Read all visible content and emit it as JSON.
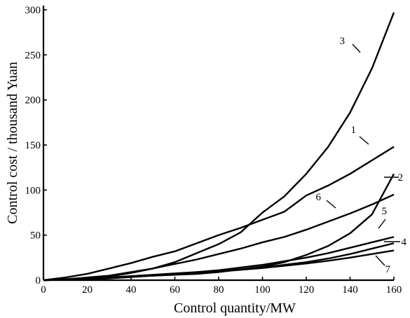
{
  "chart_data": {
    "type": "line",
    "xlabel": "Control quantity/MW",
    "ylabel": "Control cost / thousand Yuan",
    "xlim": [
      0,
      160
    ],
    "ylim": [
      0,
      300
    ],
    "xticks": [
      0,
      20,
      40,
      60,
      80,
      100,
      120,
      140,
      160
    ],
    "yticks": [
      0,
      50,
      100,
      150,
      200,
      250,
      300
    ],
    "ytick_labels": [
      "0",
      "50",
      "100",
      "150",
      "200",
      "250",
      "300"
    ],
    "grid": false,
    "x": [
      0,
      10,
      20,
      30,
      40,
      50,
      60,
      70,
      80,
      90,
      100,
      110,
      120,
      130,
      140,
      150,
      160
    ],
    "series": [
      {
        "name": "1",
        "values": [
          0,
          3,
          7,
          13,
          19,
          26,
          32,
          41,
          50,
          58,
          67,
          76,
          94,
          105,
          118,
          133,
          148
        ]
      },
      {
        "name": "2",
        "values": [
          0,
          1,
          2,
          3,
          4,
          5,
          6,
          7,
          9,
          12,
          15,
          20,
          28,
          38,
          52,
          73,
          118
        ]
      },
      {
        "name": "3",
        "values": [
          0,
          1,
          2,
          4,
          8,
          13,
          20,
          30,
          40,
          53,
          75,
          93,
          118,
          148,
          186,
          235,
          297
        ]
      },
      {
        "name": "4",
        "values": [
          0,
          0.5,
          1.5,
          2.5,
          4,
          5.5,
          7,
          8.5,
          10,
          12,
          14,
          17,
          20,
          24,
          29,
          35,
          41
        ]
      },
      {
        "name": "5",
        "values": [
          0,
          0.5,
          1.5,
          3,
          4.5,
          6,
          7.5,
          9,
          11,
          14,
          17,
          21,
          25,
          30,
          36,
          42,
          48
        ]
      },
      {
        "name": "6",
        "values": [
          0,
          1,
          3,
          5,
          9,
          13,
          18,
          23,
          29,
          35,
          42,
          48,
          56,
          65,
          74,
          84,
          95
        ]
      },
      {
        "name": "7",
        "values": [
          0,
          0.5,
          1,
          2,
          3.5,
          5,
          6.5,
          8,
          9.5,
          11.5,
          13.5,
          16,
          18.5,
          21.5,
          25,
          29,
          33
        ]
      }
    ]
  }
}
